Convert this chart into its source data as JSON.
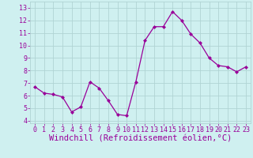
{
  "x": [
    0,
    1,
    2,
    3,
    4,
    5,
    6,
    7,
    8,
    9,
    10,
    11,
    12,
    13,
    14,
    15,
    16,
    17,
    18,
    19,
    20,
    21,
    22,
    23
  ],
  "y": [
    6.7,
    6.2,
    6.1,
    5.9,
    4.7,
    5.1,
    7.1,
    6.6,
    5.6,
    4.5,
    4.4,
    7.1,
    10.4,
    11.5,
    11.5,
    12.7,
    12.0,
    10.9,
    10.2,
    9.0,
    8.4,
    8.3,
    7.9,
    8.3
  ],
  "line_color": "#990099",
  "marker": "D",
  "marker_size": 2.0,
  "bg_color": "#cff0f0",
  "grid_color": "#b0d4d4",
  "xlabel": "Windchill (Refroidissement éolien,°C)",
  "xlabel_color": "#990099",
  "xlim": [
    -0.5,
    23.5
  ],
  "ylim": [
    3.8,
    13.5
  ],
  "yticks": [
    4,
    5,
    6,
    7,
    8,
    9,
    10,
    11,
    12,
    13
  ],
  "xticks": [
    0,
    1,
    2,
    3,
    4,
    5,
    6,
    7,
    8,
    9,
    10,
    11,
    12,
    13,
    14,
    15,
    16,
    17,
    18,
    19,
    20,
    21,
    22,
    23
  ],
  "tick_color": "#990099",
  "tick_fontsize": 6.0,
  "xlabel_fontsize": 7.5
}
